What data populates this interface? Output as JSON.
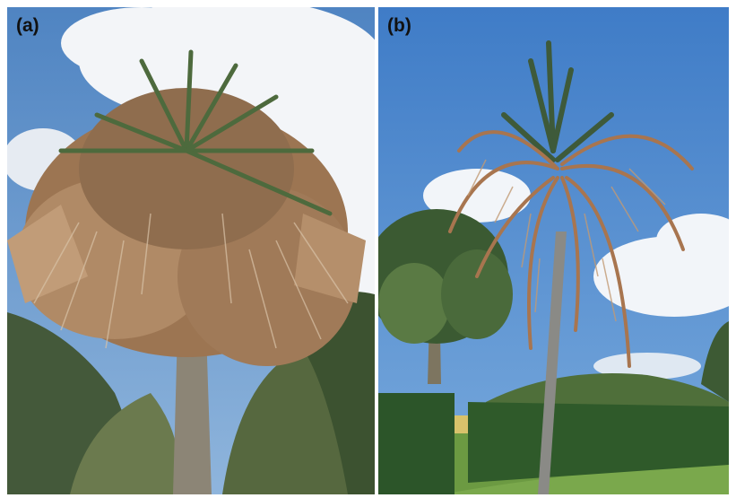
{
  "figure": {
    "panels": [
      {
        "label": "(a)",
        "subject": "palm-tree-with-browned-fronds"
      },
      {
        "label": "(b)",
        "subject": "tall-palm-with-drooping-brown-fronds"
      }
    ]
  },
  "colors": {
    "sky_a": "#5f91c9",
    "sky_b": "#4b86cf",
    "cloud": "#f4f6f9",
    "dead_frond": "#a37a57",
    "green_frond": "#4d6a3d",
    "trunk": "#8c8576",
    "hedge": "#2f5a2a",
    "grass": "#6c9a42"
  }
}
